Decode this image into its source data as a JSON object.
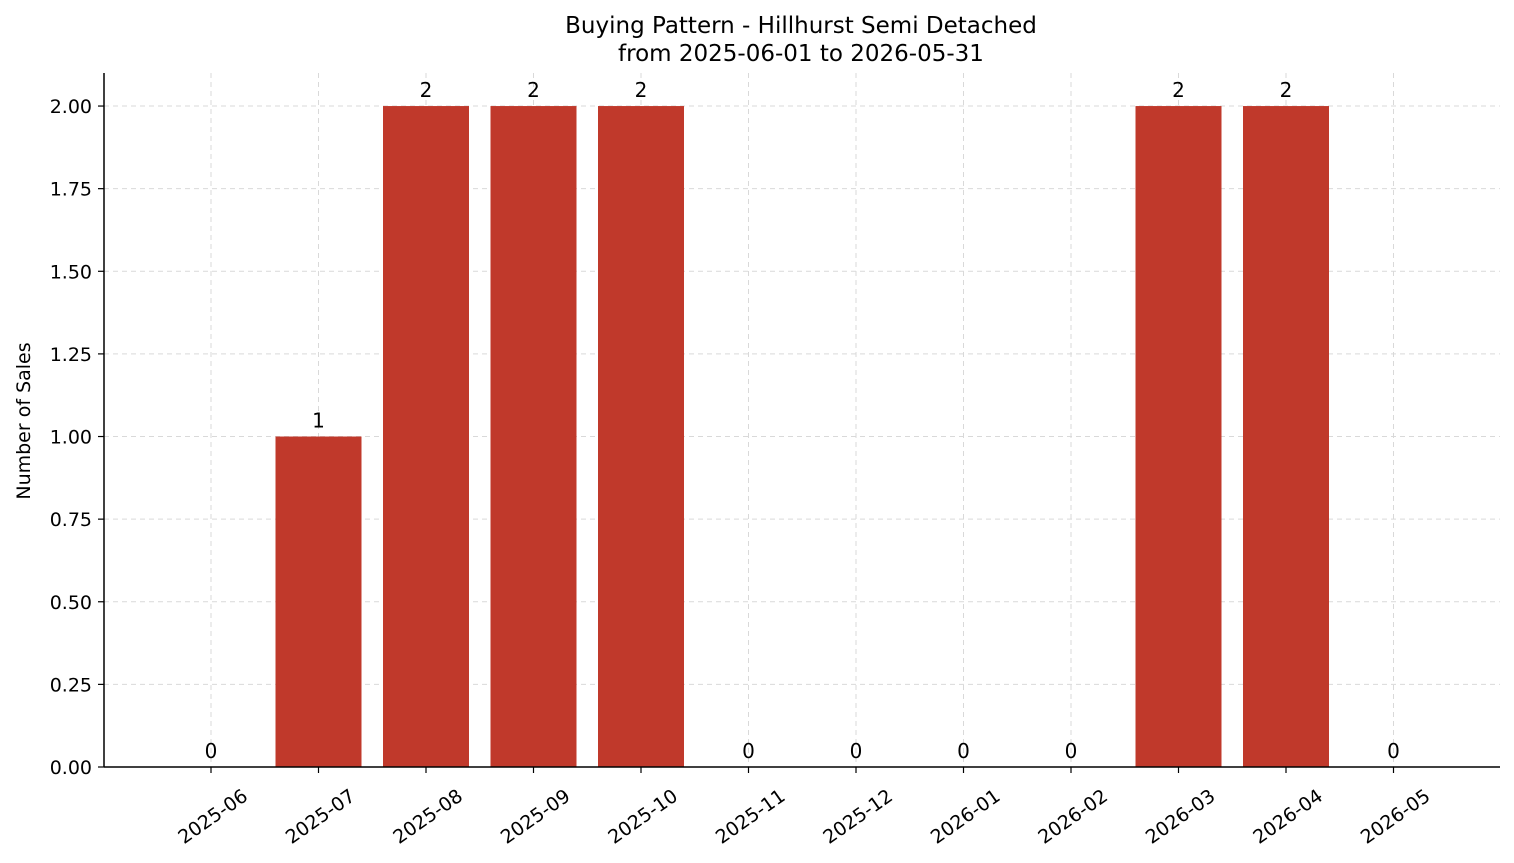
{
  "chart_data": {
    "type": "bar",
    "title": "Buying Pattern - Hillhurst Semi Detached",
    "subtitle": "from 2025-06-01 to 2026-05-31",
    "xlabel": "",
    "ylabel": "Number of Sales",
    "categories": [
      "2025-06",
      "2025-07",
      "2025-08",
      "2025-09",
      "2025-10",
      "2025-11",
      "2025-12",
      "2026-01",
      "2026-02",
      "2026-03",
      "2026-04",
      "2026-05"
    ],
    "values": [
      0,
      1,
      2,
      2,
      2,
      0,
      0,
      0,
      0,
      2,
      2,
      0
    ],
    "ylim": [
      0,
      2.1
    ],
    "yticks": [
      "0.00",
      "0.25",
      "0.50",
      "0.75",
      "1.00",
      "1.25",
      "1.50",
      "1.75",
      "2.00"
    ],
    "grid": true,
    "bar_color": "#c0392b"
  }
}
